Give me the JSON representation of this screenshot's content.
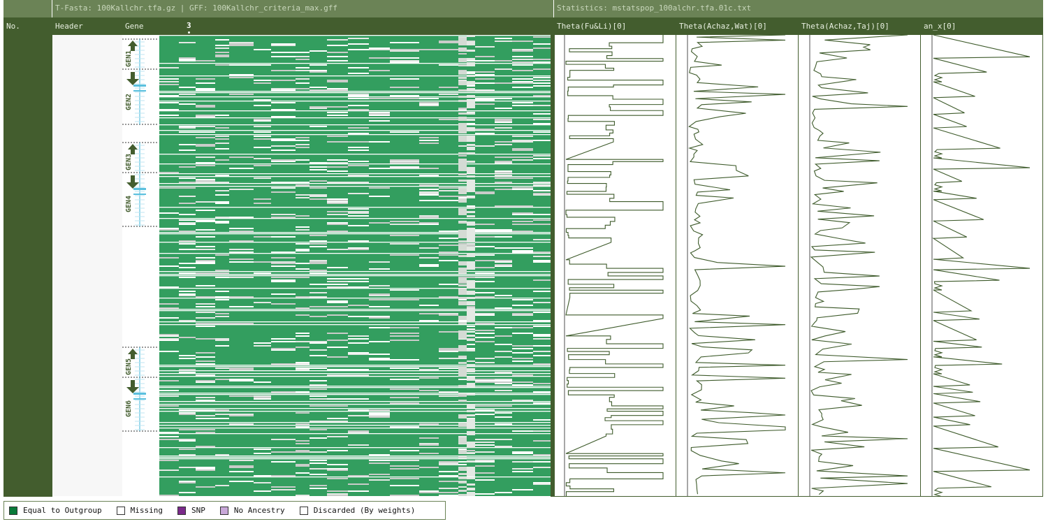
{
  "top_bar": {
    "tfasta_info": "T-Fasta: 100Kallchr.tfa.gz | GFF: 100Kallchr_criteria_max.gff",
    "statistics_info": "Statistics: mstatspop_100alchr.tfa.01c.txt"
  },
  "columns": {
    "no": "No.",
    "header": "Header",
    "gene": "Gene",
    "position_marker": "3"
  },
  "genes": [
    "GEN1",
    "GEN2",
    "GEN3",
    "GEN4",
    "GEN5",
    "GEN6"
  ],
  "stats": [
    {
      "label": "Theta(Fu&Li)[0]",
      "icon": "line-plot"
    },
    {
      "label": "Theta(Achaz,Wat)[0]",
      "icon": "line-plot"
    },
    {
      "label": "Theta(Achaz,Taj)[0]",
      "icon": "line-plot"
    },
    {
      "label": "an_x[0]",
      "icon": "line-plot"
    }
  ],
  "legend": [
    {
      "label": "Equal to Outgroup",
      "color": "#0a7a3a"
    },
    {
      "label": "Missing",
      "color": "#ffffff"
    },
    {
      "label": "SNP",
      "color": "#7a2a8a"
    },
    {
      "label": "No Ancestry",
      "color": "#c8a8d8"
    },
    {
      "label": "Discarded (By weights)",
      "color": "#ffffff"
    }
  ],
  "colors": {
    "dark_green": "#435d2e",
    "mid_green": "#6b8356",
    "matrix_green": "#339e5f",
    "gene_blue": "#5bc0de",
    "plot_line": "#3d5a2a"
  }
}
